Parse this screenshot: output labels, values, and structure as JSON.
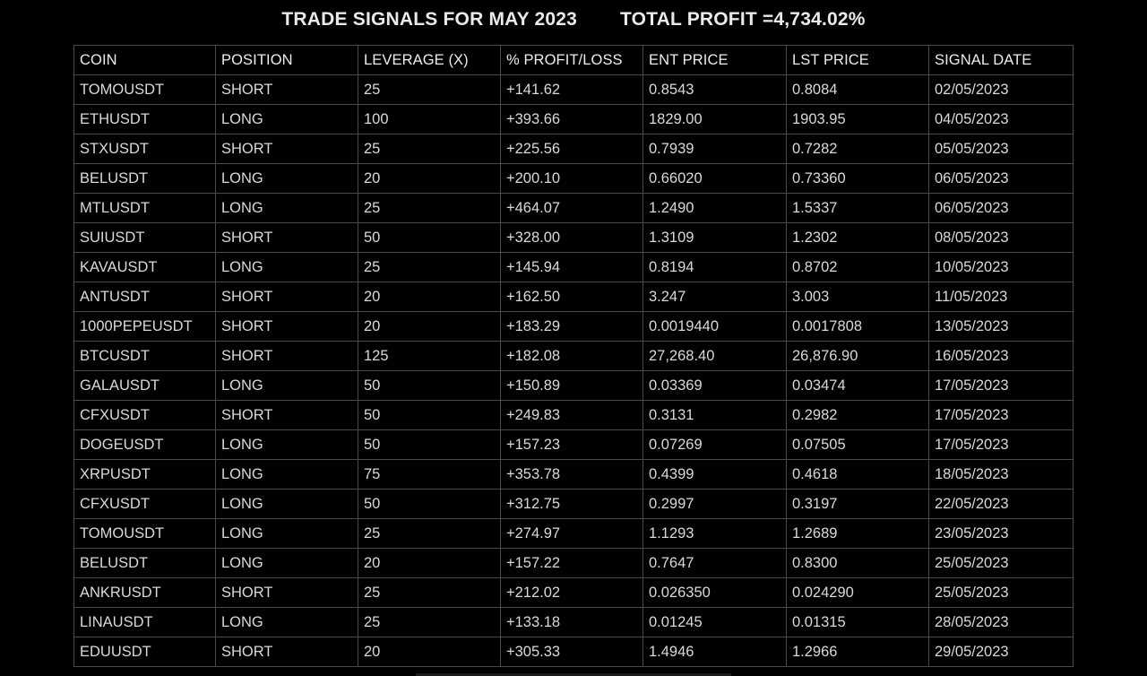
{
  "header": {
    "title": "TRADE SIGNALS FOR MAY 2023",
    "total_profit": "TOTAL PROFIT =4,734.02%"
  },
  "table": {
    "columns": [
      "COIN",
      "POSITION",
      "LEVERAGE (X)",
      "% PROFIT/LOSS",
      "ENT PRICE",
      "LST PRICE",
      "SIGNAL DATE"
    ],
    "rows": [
      [
        "TOMOUSDT",
        "SHORT",
        "25",
        "+141.62",
        "0.8543",
        "0.8084",
        "02/05/2023"
      ],
      [
        "ETHUSDT",
        "LONG",
        "100",
        "+393.66",
        "1829.00",
        "1903.95",
        "04/05/2023"
      ],
      [
        "STXUSDT",
        "SHORT",
        "25",
        "+225.56",
        "0.7939",
        "0.7282",
        "05/05/2023"
      ],
      [
        "BELUSDT",
        "LONG",
        "20",
        "+200.10",
        "0.66020",
        "0.73360",
        "06/05/2023"
      ],
      [
        "MTLUSDT",
        "LONG",
        "25",
        "+464.07",
        "1.2490",
        "1.5337",
        "06/05/2023"
      ],
      [
        "SUIUSDT",
        "SHORT",
        "50",
        "+328.00",
        "1.3109",
        "1.2302",
        "08/05/2023"
      ],
      [
        "KAVAUSDT",
        "LONG",
        "25",
        "+145.94",
        "0.8194",
        "0.8702",
        "10/05/2023"
      ],
      [
        "ANTUSDT",
        "SHORT",
        "20",
        "+162.50",
        "3.247",
        "3.003",
        "11/05/2023"
      ],
      [
        "1000PEPEUSDT",
        "SHORT",
        "20",
        "+183.29",
        "0.0019440",
        "0.0017808",
        "13/05/2023"
      ],
      [
        "BTCUSDT",
        "SHORT",
        "125",
        "+182.08",
        "27,268.40",
        "26,876.90",
        "16/05/2023"
      ],
      [
        "GALAUSDT",
        "LONG",
        "50",
        "+150.89",
        "0.03369",
        "0.03474",
        "17/05/2023"
      ],
      [
        "CFXUSDT",
        "SHORT",
        "50",
        "+249.83",
        "0.3131",
        "0.2982",
        "17/05/2023"
      ],
      [
        "DOGEUSDT",
        "LONG",
        "50",
        "+157.23",
        "0.07269",
        "0.07505",
        "17/05/2023"
      ],
      [
        "XRPUSDT",
        "LONG",
        "75",
        "+353.78",
        "0.4399",
        "0.4618",
        "18/05/2023"
      ],
      [
        "CFXUSDT",
        "LONG",
        "50",
        "+312.75",
        "0.2997",
        "0.3197",
        "22/05/2023"
      ],
      [
        "TOMOUSDT",
        "LONG",
        "25",
        "+274.97",
        "1.1293",
        "1.2689",
        "23/05/2023"
      ],
      [
        "BELUSDT",
        "LONG",
        "20",
        "+157.22",
        "0.7647",
        "0.8300",
        "25/05/2023"
      ],
      [
        "ANKRUSDT",
        "SHORT",
        "25",
        "+212.02",
        "0.026350",
        "0.024290",
        "25/05/2023"
      ],
      [
        "LINAUSDT",
        "LONG",
        "25",
        "+133.18",
        "0.01245",
        "0.01315",
        "28/05/2023"
      ],
      [
        "EDUUSDT",
        "SHORT",
        "20",
        "+305.33",
        "1.4946",
        "1.2966",
        "29/05/2023"
      ]
    ]
  }
}
